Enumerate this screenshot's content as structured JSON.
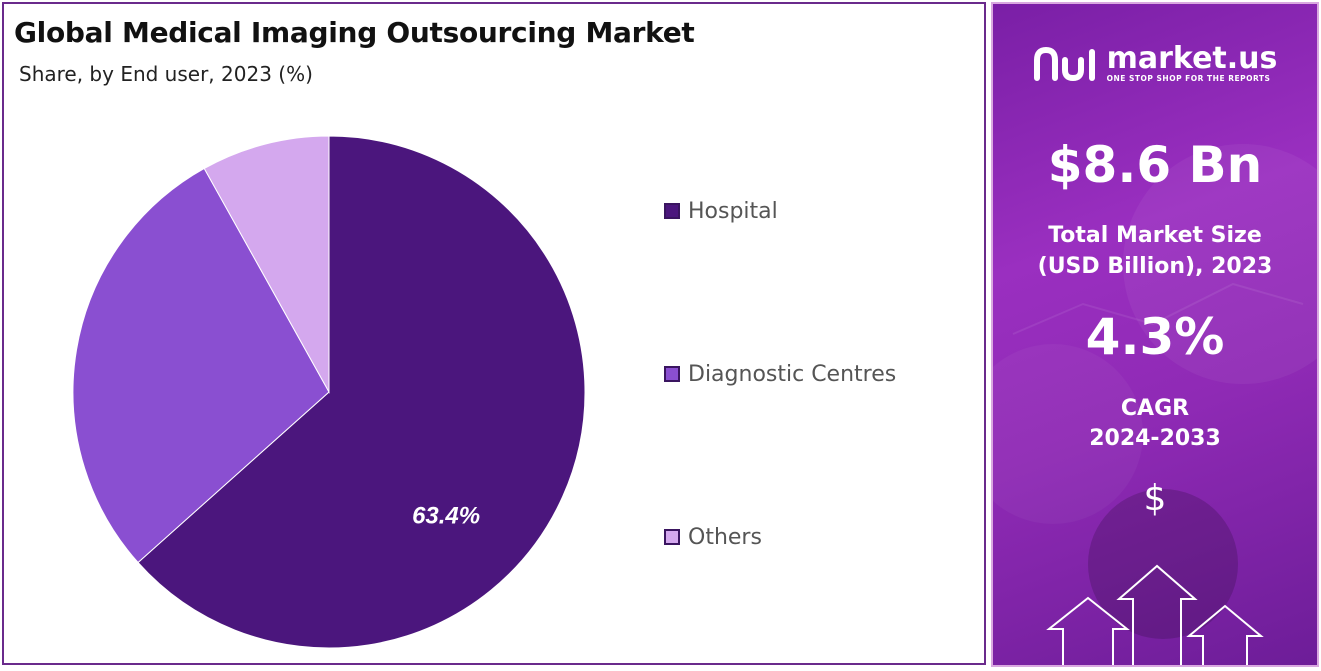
{
  "chart_data": {
    "type": "pie",
    "title": "Global Medical Imaging Outsourcing Market",
    "subtitle": "Share, by End user, 2023 (%)",
    "categories": [
      "Hospital",
      "Diagnostic Centres",
      "Others"
    ],
    "values": [
      63.4,
      28.5,
      8.1
    ],
    "data_labels": [
      "63.4%",
      "",
      ""
    ],
    "colors": [
      "#4b167d",
      "#8a4fd1",
      "#d4a8ee"
    ],
    "legend_position": "right"
  },
  "info_panel": {
    "brand_name": "market.us",
    "brand_tagline": "ONE STOP SHOP FOR THE REPORTS",
    "market_size_value": "$8.6 Bn",
    "market_size_label_line1": "Total Market Size",
    "market_size_label_line2": "(USD Billion), 2023",
    "cagr_value": "4.3%",
    "cagr_label_line1": "CAGR",
    "cagr_label_line2": "2024-2033",
    "dollar_symbol": "$",
    "logo_icon": "market-us-logo-icon",
    "decor_icon": "up-arrows-icon"
  }
}
